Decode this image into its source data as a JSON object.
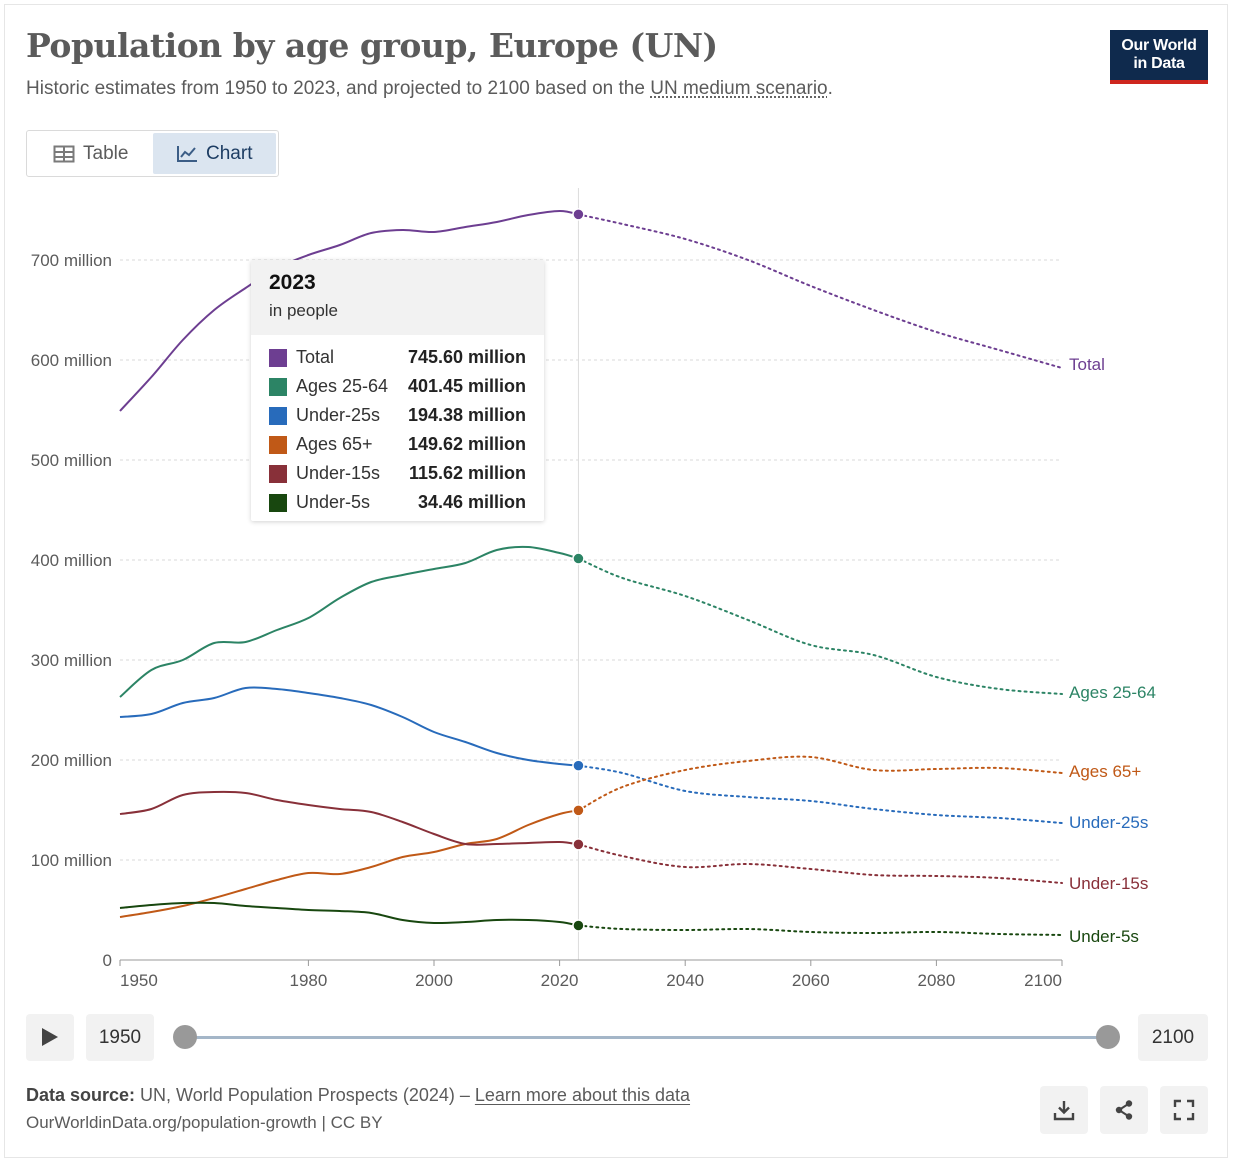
{
  "header": {
    "title": "Population by age group, Europe (UN)",
    "subtitle_pre": "Historic estimates from 1950 to 2023, and projected to 2100 based on the ",
    "subtitle_link": "UN medium scenario",
    "subtitle_post": "."
  },
  "logo": {
    "line1": "Our World",
    "line2": "in Data"
  },
  "tabs": [
    {
      "label": "Table",
      "icon": "table-icon",
      "active": false
    },
    {
      "label": "Chart",
      "icon": "line-chart-icon",
      "active": true
    }
  ],
  "chart_data": {
    "type": "line",
    "title": "Population by age group, Europe (UN)",
    "ylabel": "",
    "xlabel": "",
    "xlim": [
      1950,
      2100
    ],
    "ylim": [
      0,
      750
    ],
    "x_ticks": [
      1950,
      1980,
      2000,
      2020,
      2040,
      2060,
      2080,
      2100
    ],
    "y_ticks": [
      {
        "value": 0,
        "label": "0"
      },
      {
        "value": 100,
        "label": "100 million"
      },
      {
        "value": 200,
        "label": "200 million"
      },
      {
        "value": 300,
        "label": "300 million"
      },
      {
        "value": 400,
        "label": "400 million"
      },
      {
        "value": 500,
        "label": "500 million"
      },
      {
        "value": 600,
        "label": "600 million"
      },
      {
        "value": 700,
        "label": "700 million"
      }
    ],
    "grid": "horizontal dashed",
    "projection_start": 2023,
    "highlight_year": 2023,
    "legend": "inline labels at right end",
    "series": [
      {
        "name": "Total",
        "color": "#6d3e91",
        "points": [
          [
            1950,
            549
          ],
          [
            1955,
            583
          ],
          [
            1960,
            620
          ],
          [
            1965,
            650
          ],
          [
            1970,
            672
          ],
          [
            1975,
            692
          ],
          [
            1980,
            705
          ],
          [
            1985,
            715
          ],
          [
            1990,
            727
          ],
          [
            1995,
            730
          ],
          [
            2000,
            728
          ],
          [
            2005,
            733
          ],
          [
            2010,
            738
          ],
          [
            2015,
            745
          ],
          [
            2020,
            749
          ],
          [
            2023,
            745.6
          ],
          [
            2030,
            736
          ],
          [
            2040,
            721
          ],
          [
            2050,
            700
          ],
          [
            2060,
            674
          ],
          [
            2070,
            650
          ],
          [
            2080,
            628
          ],
          [
            2090,
            610
          ],
          [
            2100,
            592
          ]
        ]
      },
      {
        "name": "Ages 25-64",
        "color": "#2c8465",
        "points": [
          [
            1950,
            263
          ],
          [
            1955,
            290
          ],
          [
            1960,
            300
          ],
          [
            1965,
            317
          ],
          [
            1970,
            318
          ],
          [
            1975,
            330
          ],
          [
            1980,
            342
          ],
          [
            1985,
            362
          ],
          [
            1990,
            378
          ],
          [
            1995,
            385
          ],
          [
            2000,
            391
          ],
          [
            2005,
            397
          ],
          [
            2010,
            410
          ],
          [
            2015,
            413
          ],
          [
            2020,
            407
          ],
          [
            2023,
            401.45
          ],
          [
            2030,
            382
          ],
          [
            2040,
            364
          ],
          [
            2050,
            340
          ],
          [
            2060,
            315
          ],
          [
            2070,
            305
          ],
          [
            2080,
            283
          ],
          [
            2090,
            271
          ],
          [
            2100,
            266
          ]
        ]
      },
      {
        "name": "Under-25s",
        "color": "#286bbb",
        "points": [
          [
            1950,
            243
          ],
          [
            1955,
            246
          ],
          [
            1960,
            257
          ],
          [
            1965,
            262
          ],
          [
            1970,
            272
          ],
          [
            1975,
            271
          ],
          [
            1980,
            267
          ],
          [
            1985,
            262
          ],
          [
            1990,
            255
          ],
          [
            1995,
            243
          ],
          [
            2000,
            228
          ],
          [
            2005,
            218
          ],
          [
            2010,
            207
          ],
          [
            2015,
            200
          ],
          [
            2020,
            196
          ],
          [
            2023,
            194.38
          ],
          [
            2030,
            187
          ],
          [
            2040,
            169
          ],
          [
            2050,
            163
          ],
          [
            2060,
            159
          ],
          [
            2070,
            151
          ],
          [
            2080,
            145
          ],
          [
            2090,
            142
          ],
          [
            2100,
            137
          ]
        ]
      },
      {
        "name": "Ages 65+",
        "color": "#c05917",
        "points": [
          [
            1950,
            43
          ],
          [
            1955,
            48
          ],
          [
            1960,
            54
          ],
          [
            1965,
            62
          ],
          [
            1970,
            71
          ],
          [
            1975,
            80
          ],
          [
            1980,
            87
          ],
          [
            1985,
            86
          ],
          [
            1990,
            93
          ],
          [
            1995,
            103
          ],
          [
            2000,
            108
          ],
          [
            2005,
            116
          ],
          [
            2010,
            121
          ],
          [
            2015,
            135
          ],
          [
            2020,
            146
          ],
          [
            2023,
            149.62
          ],
          [
            2030,
            173
          ],
          [
            2040,
            190
          ],
          [
            2050,
            199
          ],
          [
            2060,
            203
          ],
          [
            2070,
            190
          ],
          [
            2080,
            191
          ],
          [
            2090,
            192
          ],
          [
            2100,
            187
          ]
        ]
      },
      {
        "name": "Under-15s",
        "color": "#883039",
        "points": [
          [
            1950,
            146
          ],
          [
            1955,
            151
          ],
          [
            1960,
            165
          ],
          [
            1965,
            168
          ],
          [
            1970,
            167
          ],
          [
            1975,
            160
          ],
          [
            1980,
            155
          ],
          [
            1985,
            151
          ],
          [
            1990,
            148
          ],
          [
            1995,
            138
          ],
          [
            2000,
            126
          ],
          [
            2005,
            116
          ],
          [
            2010,
            116
          ],
          [
            2015,
            117
          ],
          [
            2020,
            118
          ],
          [
            2023,
            115.62
          ],
          [
            2030,
            104
          ],
          [
            2040,
            93
          ],
          [
            2050,
            96
          ],
          [
            2060,
            91
          ],
          [
            2070,
            85
          ],
          [
            2080,
            84
          ],
          [
            2090,
            82
          ],
          [
            2100,
            77
          ]
        ]
      },
      {
        "name": "Under-5s",
        "color": "#18470f",
        "points": [
          [
            1950,
            52
          ],
          [
            1955,
            55
          ],
          [
            1960,
            57
          ],
          [
            1965,
            57
          ],
          [
            1970,
            54
          ],
          [
            1975,
            52
          ],
          [
            1980,
            50
          ],
          [
            1985,
            49
          ],
          [
            1990,
            47
          ],
          [
            1995,
            40
          ],
          [
            2000,
            37
          ],
          [
            2005,
            38
          ],
          [
            2010,
            40
          ],
          [
            2015,
            40
          ],
          [
            2020,
            38
          ],
          [
            2023,
            34.46
          ],
          [
            2030,
            31
          ],
          [
            2040,
            30
          ],
          [
            2050,
            31
          ],
          [
            2060,
            28
          ],
          [
            2070,
            27
          ],
          [
            2080,
            28
          ],
          [
            2090,
            26
          ],
          [
            2100,
            25
          ]
        ]
      }
    ]
  },
  "tooltip": {
    "year": "2023",
    "unit": "in people",
    "rows": [
      {
        "name": "Total",
        "value": "745.60 million",
        "color": "#6d3e91"
      },
      {
        "name": "Ages 25-64",
        "value": "401.45 million",
        "color": "#2c8465"
      },
      {
        "name": "Under-25s",
        "value": "194.38 million",
        "color": "#286bbb"
      },
      {
        "name": "Ages 65+",
        "value": "149.62 million",
        "color": "#c05917"
      },
      {
        "name": "Under-15s",
        "value": "115.62 million",
        "color": "#883039"
      },
      {
        "name": "Under-5s",
        "value": "34.46 million",
        "color": "#18470f"
      }
    ]
  },
  "timeline": {
    "start": "1950",
    "end": "2100"
  },
  "footer": {
    "source_label": "Data source:",
    "source_text": " UN, World Population Prospects (2024) – ",
    "learn_more": "Learn more about this data",
    "url_line": "OurWorldinData.org/population-growth | CC BY"
  },
  "actions": [
    {
      "name": "download-button",
      "icon": "download-icon"
    },
    {
      "name": "share-button",
      "icon": "share-icon"
    },
    {
      "name": "fullscreen-button",
      "icon": "fullscreen-icon"
    }
  ]
}
